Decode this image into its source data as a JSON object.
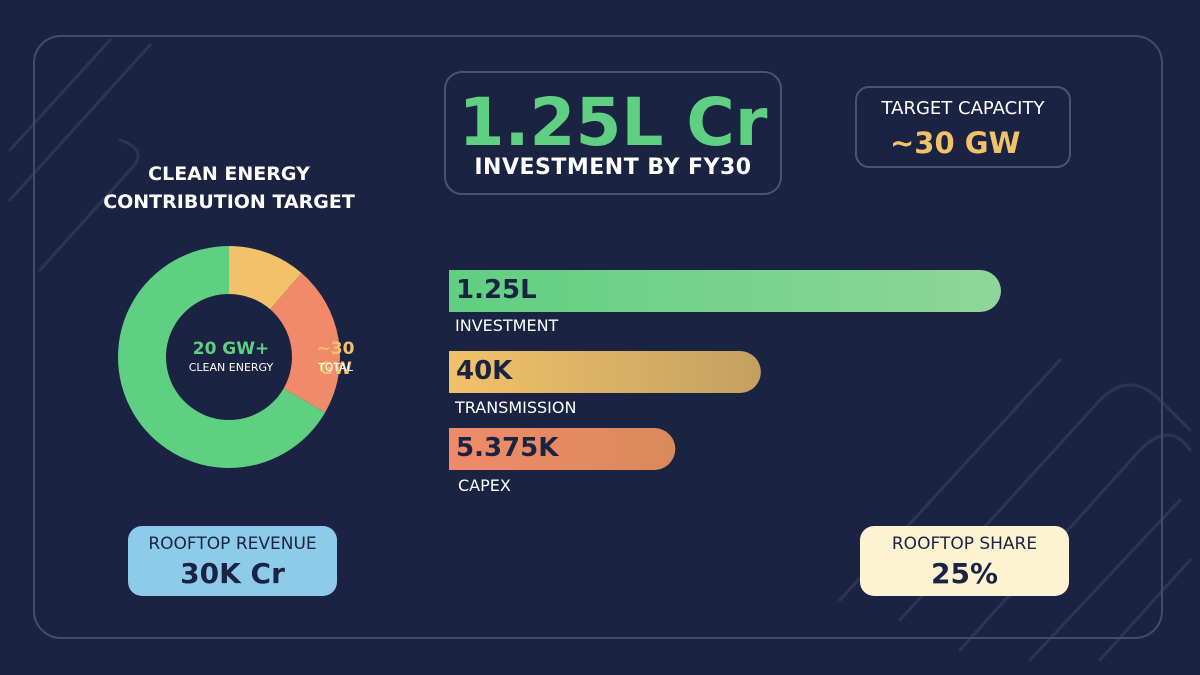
{
  "header": {
    "investment_value": "1.25L Cr",
    "investment_label": "INVESTMENT BY FY30",
    "capacity_label": "TARGET CAPACITY",
    "capacity_value": "~30 GW"
  },
  "colors": {
    "background": "#1b2342",
    "green": "#5fcf81",
    "yellow": "#f2c26a",
    "coral": "#f08a6a",
    "blue": "#8ecbea",
    "cream": "#fbf3d2"
  },
  "donut": {
    "title_line1": "CLEAN ENERGY",
    "title_line2": "CONTRIBUTION TARGET",
    "center_left_value": "20 GW+",
    "center_left_label": "CLEAN ENERGY",
    "center_right_value": "~30 GW",
    "center_right_label": "TOTAL"
  },
  "chart_data": [
    {
      "type": "pie",
      "title": "CLEAN ENERGY CONTRIBUTION TARGET",
      "slices": [
        {
          "label": "CLEAN ENERGY",
          "value": 20,
          "color": "#5fcf81"
        },
        {
          "label": "",
          "value": 3.4,
          "color": "#f2c26a"
        },
        {
          "label": "",
          "value": 6.6,
          "color": "#f08a6a"
        }
      ],
      "start_angle_deg": 0,
      "order": [
        "yellow",
        "coral",
        "green"
      ]
    },
    {
      "type": "bar",
      "orientation": "horizontal",
      "categories": [
        "INVESTMENT",
        "TRANSMISSION",
        "CAPEX"
      ],
      "value_labels": [
        "1.25L",
        "40K",
        "5.375K"
      ],
      "bars": [
        {
          "label": "INVESTMENT",
          "display": "1.25L",
          "fill": 1.0,
          "color_from": "#5fcf81",
          "color_to": "#8fd69a"
        },
        {
          "label": "TRANSMISSION",
          "display": "40K",
          "fill": 0.565,
          "color_from": "#f2c26a",
          "color_to": "#c4a060"
        },
        {
          "label": "CAPEX",
          "display": "5.375K",
          "fill": 0.41,
          "color_from": "#f08a6a",
          "color_to": "#d98a5a"
        }
      ]
    }
  ],
  "footer": {
    "rooftop_revenue_label": "ROOFTOP REVENUE",
    "rooftop_revenue_value": "30K Cr",
    "rooftop_share_label": "ROOFTOP SHARE",
    "rooftop_share_value": "25%"
  }
}
